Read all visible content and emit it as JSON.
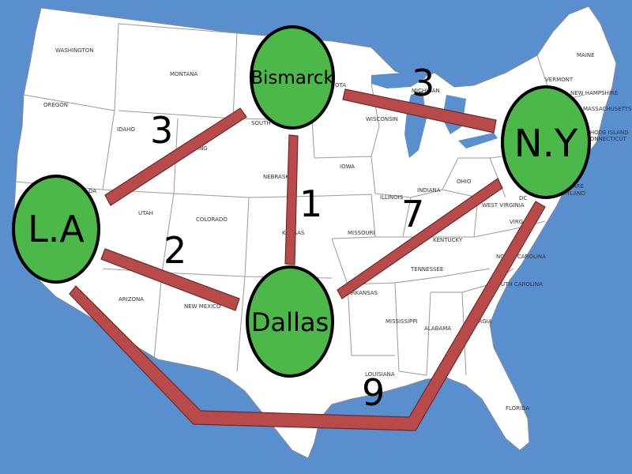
{
  "colors": {
    "ocean": "#5a8fcf",
    "land": "#ffffff",
    "border": "#9a9a9a",
    "city_fill": "#4db84a",
    "city_stroke": "#000000",
    "route": "#b94a4a",
    "route_stroke": "#6e2a2a"
  },
  "states": {
    "washington": "WASHINGTON",
    "oregon": "OREGON",
    "idaho": "IDAHO",
    "montana": "MONTANA",
    "utah": "UTAH",
    "colorado": "COLORADO",
    "arizona": "ARIZONA",
    "new_mexico": "NEW MEXICO",
    "south_dakota": "SOUTH",
    "nebraska": "NEBRASKA",
    "kansas": "KANSAS",
    "iowa": "IOWA",
    "missouri": "MISSOURI",
    "arkansas": "ARKANSAS",
    "louisiana": "LOUISIANA",
    "mississippi": "MISSISSIPPI",
    "alabama": "ALABAMA",
    "georgia": "ORGIA",
    "florida": "FLORIDA",
    "tennessee": "TENNESSEE",
    "kentucky": "KENTUCKY",
    "illinois": "ILLINOIS",
    "indiana": "INDIANA",
    "ohio": "OHIO",
    "wisconsin": "WISCONSIN",
    "michigan": "MICHIGAN",
    "west_virginia": "WEST VIRGINIA",
    "virginia": "VIRG",
    "north_carolina": "NORTH CAROLINA",
    "south_carolina": "SOUTH CAROLINA",
    "dc": "DC",
    "maryland": "MARYLAND",
    "delaware": "DELAWARE",
    "vermont": "VERMONT",
    "maine": "MAINE",
    "new_hampshire": "NEW HAMPSHIRE",
    "massachusetts": "MASSACHUSETTS",
    "rhode_island": "RHODE ISLAND",
    "connecticut": "CONNECTICUT",
    "dakota_fragment": "OTA",
    "wyoming_fragment": "ING",
    "nevada_fragment": "DA"
  },
  "cities": {
    "la": "L.A",
    "bismarck": "Bismarck",
    "dallas": "Dallas",
    "ny": "N.Y"
  },
  "edges": {
    "la_bismarck": "3",
    "la_dallas": "2",
    "bismarck_dallas": "1",
    "bismarck_ny": "3",
    "dallas_ny": "7",
    "la_ny": "9"
  }
}
